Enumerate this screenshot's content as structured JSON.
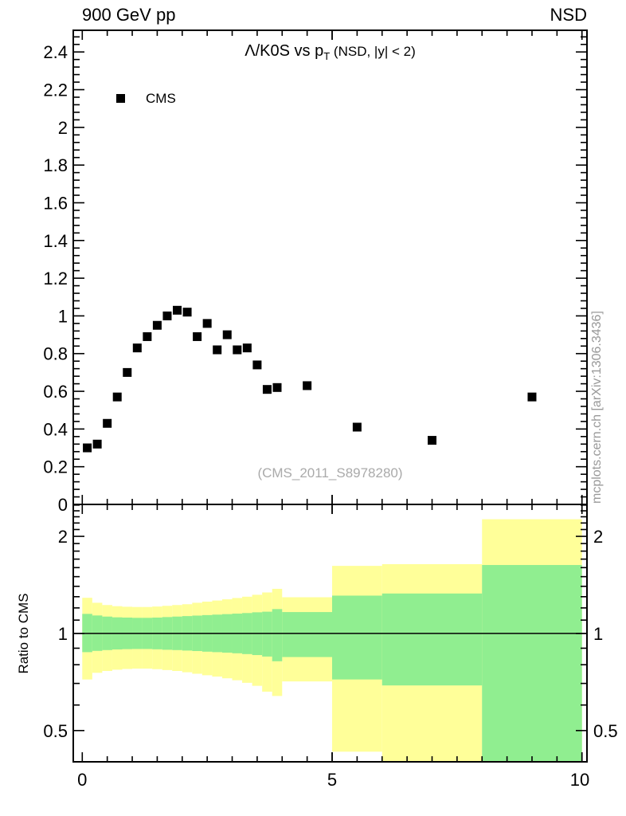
{
  "header": {
    "left": "900 GeV pp",
    "right": "NSD"
  },
  "title": {
    "main": "Λ/K0S vs p",
    "sub": "T",
    "suffix": " (NSD, |y| < 2)"
  },
  "legend": {
    "items": [
      {
        "label": "CMS",
        "marker": "black-filled-square"
      }
    ]
  },
  "watermark": "(CMS_2011_S8978280)",
  "side_text": "mcplots.cern.ch [arXiv:1306.3436]",
  "ratio_ylabel": "Ratio to CMS",
  "colors": {
    "marker": "#000000",
    "band_outer_yellow": "#ffff99",
    "band_inner_green": "#90ee90",
    "frame": "#000000",
    "watermark_gray": "#aaaaaa",
    "side_text_gray": "#999999"
  },
  "chart_data": [
    {
      "id": "main",
      "type": "scatter",
      "title": "Λ/K0S vs pT (NSD, |y| < 2)",
      "xlabel": "",
      "ylabel": "",
      "xlim": [
        -0.18,
        10.1
      ],
      "ylim": [
        0,
        2.515
      ],
      "grid": false,
      "legend_position": "top-left-inside",
      "series": [
        {
          "name": "CMS",
          "marker": "filled-square",
          "color": "#000000",
          "x": [
            0.1,
            0.3,
            0.5,
            0.7,
            0.9,
            1.1,
            1.3,
            1.5,
            1.7,
            1.9,
            2.1,
            2.3,
            2.5,
            2.7,
            2.9,
            3.1,
            3.3,
            3.5,
            3.7,
            3.9,
            4.5,
            5.5,
            7.0,
            9.0
          ],
          "y": [
            0.3,
            0.32,
            0.43,
            0.57,
            0.7,
            0.83,
            0.89,
            0.95,
            1.0,
            1.03,
            1.02,
            0.89,
            0.96,
            0.82,
            0.9,
            0.82,
            0.83,
            0.74,
            0.61,
            0.62,
            0.63,
            0.41,
            0.34,
            0.57
          ]
        }
      ],
      "xticks": {
        "major": [
          0,
          5,
          10
        ],
        "labels": [
          "0",
          "5",
          "10"
        ],
        "minor_step": 0.5
      },
      "yticks": {
        "major": [
          0,
          0.2,
          0.4,
          0.6,
          0.8,
          1.0,
          1.2,
          1.4,
          1.6,
          1.8,
          2.0,
          2.2,
          2.4
        ],
        "labels": [
          "0",
          "0.2",
          "0.4",
          "0.6",
          "0.8",
          "1",
          "1.2",
          "1.4",
          "1.6",
          "1.8",
          "2",
          "2.2",
          "2.4"
        ],
        "minor_step": 0.04
      }
    },
    {
      "id": "ratio",
      "type": "band",
      "ylabel": "Ratio to CMS",
      "yscale": "log",
      "xlim": [
        -0.18,
        10.1
      ],
      "ylim": [
        0.4,
        2.512
      ],
      "reference_line": 1,
      "xticks": {
        "major": [
          0,
          5,
          10
        ],
        "labels": [
          "0",
          "5",
          "10"
        ],
        "minor_step": 0.5
      },
      "yticks": {
        "major": [
          0.5,
          1,
          2
        ],
        "labels": [
          "0.5",
          "1",
          "2"
        ],
        "minor": [
          0.4,
          0.6,
          0.7,
          0.8,
          0.9,
          1.1,
          1.2,
          1.3,
          1.4,
          1.5,
          1.6,
          1.7,
          1.8,
          1.9,
          2.1,
          2.2,
          2.3,
          2.4,
          2.5
        ],
        "labels_both_sides": true
      },
      "bins_columns": [
        "x_low",
        "x_high",
        "yellow_low",
        "yellow_high",
        "green_low",
        "green_high"
      ],
      "bins": [
        [
          0.0,
          0.2,
          0.72,
          1.29,
          0.875,
          1.15
        ],
        [
          0.2,
          0.4,
          0.755,
          1.245,
          0.883,
          1.137
        ],
        [
          0.4,
          0.6,
          0.765,
          1.225,
          0.888,
          1.128
        ],
        [
          0.6,
          0.8,
          0.772,
          1.215,
          0.892,
          1.122
        ],
        [
          0.8,
          1.0,
          0.776,
          1.21,
          0.894,
          1.12
        ],
        [
          1.0,
          1.2,
          0.778,
          1.208,
          0.895,
          1.118
        ],
        [
          1.2,
          1.4,
          0.778,
          1.208,
          0.895,
          1.118
        ],
        [
          1.4,
          1.6,
          0.775,
          1.212,
          0.893,
          1.12
        ],
        [
          1.6,
          1.8,
          0.77,
          1.218,
          0.89,
          1.124
        ],
        [
          1.8,
          2.0,
          0.765,
          1.225,
          0.888,
          1.128
        ],
        [
          2.0,
          2.2,
          0.758,
          1.232,
          0.885,
          1.132
        ],
        [
          2.2,
          2.4,
          0.75,
          1.245,
          0.882,
          1.136
        ],
        [
          2.4,
          2.6,
          0.742,
          1.255,
          0.878,
          1.14
        ],
        [
          2.6,
          2.8,
          0.735,
          1.265,
          0.875,
          1.144
        ],
        [
          2.8,
          3.0,
          0.726,
          1.276,
          0.872,
          1.148
        ],
        [
          3.0,
          3.2,
          0.716,
          1.288,
          0.868,
          1.152
        ],
        [
          3.2,
          3.4,
          0.703,
          1.3,
          0.863,
          1.157
        ],
        [
          3.4,
          3.6,
          0.688,
          1.318,
          0.857,
          1.163
        ],
        [
          3.6,
          3.8,
          0.66,
          1.34,
          0.848,
          1.168
        ],
        [
          3.8,
          4.0,
          0.64,
          1.375,
          0.82,
          1.19
        ],
        [
          4.0,
          5.0,
          0.71,
          1.295,
          0.845,
          1.165
        ],
        [
          5.0,
          6.0,
          0.43,
          1.62,
          0.72,
          1.31
        ],
        [
          6.0,
          8.0,
          0.4,
          1.64,
          0.69,
          1.33
        ],
        [
          8.0,
          10.0,
          0.4,
          2.26,
          0.4,
          1.63
        ]
      ]
    }
  ]
}
